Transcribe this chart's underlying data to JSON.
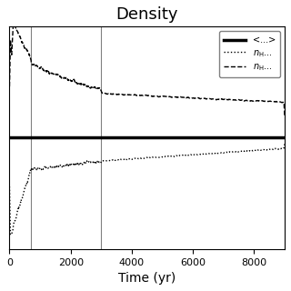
{
  "title": "Density",
  "xlabel": "Time (yr)",
  "x_max": 9000,
  "x_min": 0,
  "vlines": [
    700,
    3000
  ],
  "hline_y": 0.0,
  "legend_labels": [
    "<...>",
    "n_H...",
    "n_H..."
  ],
  "legend_styles": [
    "solid",
    "dotted",
    "dashed"
  ],
  "color": "black",
  "title_fontsize": 13,
  "axis_fontsize": 10
}
